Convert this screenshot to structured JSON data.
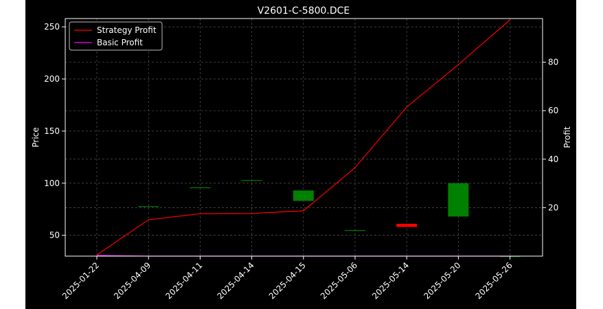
{
  "chart_data": {
    "type": "candlestick+line",
    "title": "V2601-C-5800.DCE",
    "ylabel_left": "Price",
    "ylabel_right": "Profit",
    "categories": [
      "2025-01-22",
      "2025-04-09",
      "2025-04-11",
      "2025-04-14",
      "2025-04-15",
      "2025-05-06",
      "2025-05-14",
      "2025-05-20",
      "2025-05-26"
    ],
    "price_ylim": [
      30,
      258
    ],
    "price_yticks": [
      50,
      100,
      150,
      200,
      250
    ],
    "profit_ylim": [
      0,
      98
    ],
    "profit_yticks": [
      20,
      40,
      60,
      80
    ],
    "candles": [
      {
        "open": 252,
        "close": 252,
        "high": 252,
        "low": 252
      },
      {
        "open": 78,
        "close": 78,
        "high": 78,
        "low": 78
      },
      {
        "open": 96,
        "close": 96,
        "high": 96,
        "low": 96
      },
      {
        "open": 103,
        "close": 103,
        "high": 103,
        "low": 103
      },
      {
        "open": 83,
        "close": 93,
        "high": 93,
        "low": 83
      },
      {
        "open": 55,
        "close": 55,
        "high": 55,
        "low": 55
      },
      {
        "open": 61,
        "close": 58,
        "high": 61,
        "low": 58
      },
      {
        "open": 68,
        "close": 100,
        "high": 100,
        "low": 68
      },
      {
        "open": 30,
        "close": 30,
        "high": 30,
        "low": 30
      }
    ],
    "series": [
      {
        "name": "Strategy Profit",
        "axis": "right",
        "values": [
          0.5,
          15,
          17.5,
          17.6,
          18.7,
          36.5,
          61.5,
          79,
          97.5
        ]
      },
      {
        "name": "Basic Profit",
        "axis": "right",
        "values": [
          0.3,
          0,
          0,
          0,
          0,
          0,
          0,
          0,
          0
        ]
      }
    ],
    "legend": "upper-left",
    "grid": true,
    "colors": {
      "background": "#000000",
      "figure": "#ffffff",
      "grid": "#555555",
      "candle_up": "#008000",
      "candle_down": "#ff0000",
      "strategy_line": "#ff0000",
      "basic_line": "#ff00ff",
      "text": "#ffffff"
    }
  }
}
